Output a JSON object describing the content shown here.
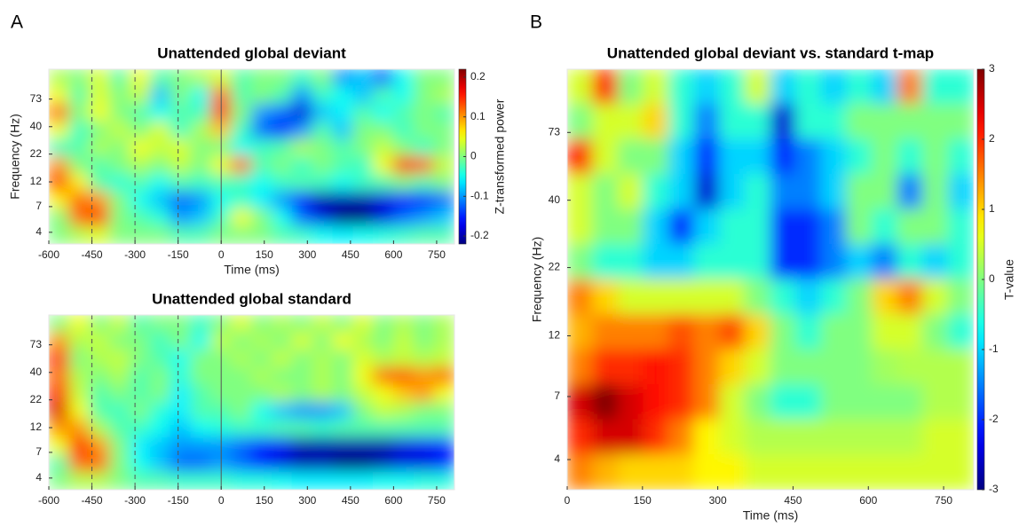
{
  "panel_labels": [
    "A",
    "B"
  ],
  "chart_data": [
    {
      "type": "heatmap",
      "title": "Unattended global deviant",
      "xlabel": "Time (ms)",
      "ylabel": "Frequency (Hz)",
      "colormap": "jet",
      "clim": [
        -0.22,
        0.22
      ],
      "log_y": true,
      "xlim": [
        -600,
        812
      ],
      "xticks": [
        -600,
        -450,
        -300,
        -150,
        0,
        150,
        300,
        450,
        600,
        750
      ],
      "ylim": [
        3.1,
        140
      ],
      "yticks": [
        4,
        7,
        12,
        22,
        40,
        73
      ],
      "vlines": [
        {
          "value": -450,
          "dashed": true
        },
        {
          "value": -300,
          "dashed": true
        },
        {
          "value": -150,
          "dashed": true
        },
        {
          "value": 0,
          "dashed": false
        }
      ],
      "colorbar": {
        "label": "Z-transformed power",
        "ticks": [
          -0.2,
          -0.1,
          0,
          0.1,
          0.2
        ]
      },
      "z": [
        [
          0.02,
          0,
          0.04,
          -0.02,
          0.05,
          -0.02,
          0,
          0.02,
          0.04,
          -0.02,
          0,
          0,
          -0.03,
          0,
          -0.1,
          -0.08,
          -0.12,
          -0.05,
          0,
          0
        ],
        [
          0.05,
          -0.02,
          0.04,
          0,
          0.03,
          -0.08,
          0,
          -0.05,
          0.12,
          -0.02,
          0,
          -0.02,
          -0.1,
          -0.03,
          -0.05,
          -0.08,
          -0.02,
          -0.05,
          0,
          0.02
        ],
        [
          0.12,
          0,
          0.05,
          0,
          -0.02,
          -0.05,
          -0.02,
          -0.03,
          0.15,
          0,
          -0.1,
          -0.12,
          -0.18,
          -0.08,
          -0.06,
          -0.02,
          -0.05,
          -0.02,
          0,
          -0.02
        ],
        [
          0.05,
          -0.03,
          0,
          0.03,
          0,
          0.04,
          -0.03,
          0.02,
          0.08,
          -0.03,
          -0.12,
          -0.15,
          -0.1,
          -0.02,
          -0.08,
          0,
          0,
          -0.03,
          0,
          0
        ],
        [
          -0.03,
          -0.02,
          0.02,
          0,
          0.05,
          0.03,
          0.04,
          0,
          0,
          -0.05,
          -0.03,
          -0.02,
          0.02,
          0,
          -0.02,
          0,
          0.03,
          0,
          -0.03,
          0
        ],
        [
          0.1,
          0,
          -0.02,
          0,
          0.02,
          0,
          0.03,
          0,
          0.05,
          0.12,
          -0.02,
          0,
          -0.03,
          0,
          -0.02,
          -0.03,
          0.05,
          0.15,
          0.12,
          0.03
        ],
        [
          0.14,
          0.06,
          -0.02,
          -0.04,
          -0.02,
          -0.05,
          -0.02,
          -0.03,
          -0.02,
          -0.03,
          -0.05,
          -0.03,
          -0.02,
          -0.03,
          -0.05,
          -0.03,
          -0.02,
          0,
          -0.02,
          0
        ],
        [
          0.06,
          0.12,
          0.1,
          0,
          -0.05,
          -0.08,
          -0.12,
          -0.1,
          -0.05,
          -0.03,
          -0.06,
          -0.1,
          -0.16,
          -0.2,
          -0.2,
          -0.2,
          -0.18,
          -0.16,
          -0.15,
          -0.12
        ],
        [
          0,
          0.12,
          0.14,
          0,
          -0.02,
          -0.04,
          -0.1,
          -0.08,
          -0.03,
          0.05,
          0,
          -0.05,
          -0.12,
          -0.18,
          -0.22,
          -0.22,
          -0.18,
          -0.12,
          -0.1,
          -0.08
        ],
        [
          0,
          0.02,
          0.04,
          0,
          0,
          0,
          -0.02,
          -0.02,
          0,
          0,
          0,
          -0.02,
          -0.03,
          -0.05,
          -0.06,
          -0.05,
          -0.04,
          -0.03,
          -0.02,
          -0.02
        ]
      ]
    },
    {
      "type": "heatmap",
      "title": "Unattended global standard",
      "colormap": "jet",
      "clim": [
        -0.22,
        0.22
      ],
      "log_y": true,
      "xlim": [
        -600,
        812
      ],
      "xticks": [
        -600,
        -450,
        -300,
        -150,
        0,
        150,
        300,
        450,
        600,
        750
      ],
      "ylim": [
        3.1,
        140
      ],
      "yticks": [
        4,
        7,
        12,
        22,
        40,
        73
      ],
      "vlines": [
        {
          "value": -450,
          "dashed": true
        },
        {
          "value": -300,
          "dashed": true
        },
        {
          "value": -150,
          "dashed": true
        },
        {
          "value": 0,
          "dashed": false
        }
      ],
      "z": [
        [
          0,
          0.05,
          0,
          0.03,
          -0.02,
          0,
          0,
          -0.03,
          0,
          0.04,
          0,
          0.02,
          0,
          0.03,
          0,
          0.04,
          0,
          0.02,
          0,
          0.02
        ],
        [
          0.1,
          0.02,
          0.03,
          0,
          0,
          -0.03,
          0,
          -0.05,
          0.03,
          0,
          0.02,
          0,
          0.04,
          0,
          0.05,
          0.02,
          0,
          0.03,
          0,
          0.02
        ],
        [
          0.15,
          0,
          0.02,
          0.03,
          0,
          -0.02,
          -0.05,
          0,
          0,
          0.02,
          0,
          0.03,
          0,
          0.02,
          0,
          0.04,
          0.02,
          0.03,
          0.02,
          0.03
        ],
        [
          0.12,
          0.02,
          0,
          0.02,
          -0.02,
          0,
          -0.04,
          0,
          0,
          0,
          0.02,
          0,
          0,
          0.02,
          0,
          0.05,
          0.12,
          0.13,
          0.1,
          0.12
        ],
        [
          0.15,
          0.03,
          -0.02,
          0,
          -0.02,
          0,
          -0.06,
          -0.02,
          0,
          0,
          0,
          0.02,
          0,
          0.02,
          0,
          0.03,
          0.05,
          0.08,
          0.1,
          0.05
        ],
        [
          0.18,
          0.05,
          -0.02,
          -0.03,
          0,
          -0.04,
          -0.06,
          -0.02,
          -0.02,
          0,
          -0.05,
          -0.08,
          -0.1,
          -0.1,
          -0.08,
          0,
          0.03,
          0.02,
          0,
          0
        ],
        [
          0.1,
          0.1,
          0.02,
          -0.02,
          -0.03,
          -0.05,
          -0.08,
          -0.05,
          -0.04,
          -0.03,
          -0.03,
          -0.02,
          -0.02,
          -0.03,
          -0.02,
          -0.02,
          -0.02,
          -0.02,
          -0.02,
          -0.02
        ],
        [
          0.05,
          0.15,
          0.1,
          0,
          -0.06,
          -0.08,
          -0.1,
          -0.1,
          -0.1,
          -0.12,
          -0.15,
          -0.17,
          -0.2,
          -0.2,
          -0.2,
          -0.2,
          -0.2,
          -0.18,
          -0.17,
          -0.15
        ],
        [
          -0.02,
          0.12,
          0.12,
          0,
          -0.05,
          -0.08,
          -0.12,
          -0.12,
          -0.1,
          -0.12,
          -0.15,
          -0.18,
          -0.2,
          -0.2,
          -0.22,
          -0.22,
          -0.2,
          -0.18,
          -0.18,
          -0.16
        ],
        [
          0,
          0.02,
          0.02,
          0,
          -0.02,
          -0.02,
          -0.03,
          -0.03,
          -0.03,
          -0.04,
          -0.04,
          -0.05,
          -0.06,
          -0.06,
          -0.06,
          -0.06,
          -0.05,
          -0.05,
          -0.04,
          -0.04
        ]
      ]
    },
    {
      "type": "heatmap",
      "title": "Unattended global deviant vs. standard t-map",
      "xlabel": "Time (ms)",
      "ylabel": "Frequency (Hz)",
      "colormap": "jet",
      "clim": [
        -3,
        3
      ],
      "log_y": true,
      "xlim": [
        0,
        810
      ],
      "xticks": [
        0,
        150,
        300,
        450,
        600,
        750
      ],
      "ylim": [
        3.06,
        128
      ],
      "yticks": [
        4,
        7,
        12,
        22,
        40,
        73
      ],
      "colorbar": {
        "label": "T-value",
        "ticks": [
          -3,
          -2,
          -1,
          0,
          1,
          2,
          3
        ]
      },
      "z": [
        [
          0.5,
          2,
          0,
          0.5,
          -0.5,
          -1,
          -0.5,
          0.5,
          -1,
          -0.5,
          -1,
          -0.5,
          -1,
          1.5,
          -0.5,
          -0.5
        ],
        [
          0,
          0.5,
          0.5,
          1,
          -0.5,
          -1.5,
          -0.5,
          -0.5,
          -2.5,
          -0.5,
          -0.5,
          0,
          0,
          0,
          0,
          0
        ],
        [
          2,
          0.5,
          0,
          0,
          -1,
          -2,
          -1,
          -1,
          -2,
          -1.5,
          -1,
          -0.5,
          0,
          -0.5,
          0,
          -0.5
        ],
        [
          0.5,
          0,
          0.5,
          -0.5,
          -1,
          -2.5,
          -1,
          -0.5,
          -1.5,
          -1.5,
          -1,
          0,
          0,
          -1.5,
          0,
          -1
        ],
        [
          0.5,
          0,
          0,
          -1,
          -2,
          -1,
          -0.5,
          -0.5,
          -2,
          -2,
          -1.5,
          0,
          -0.5,
          0,
          0,
          -0.5
        ],
        [
          0,
          -0.5,
          -0.5,
          -1,
          -1,
          -0.5,
          -0.5,
          -0.5,
          -2,
          -2,
          -1.5,
          -1,
          -1.5,
          -0.5,
          -1,
          -0.5
        ],
        [
          1.5,
          1,
          0.5,
          0.5,
          0.5,
          0.5,
          0.5,
          0,
          -0.5,
          -1,
          -0.5,
          0,
          1,
          1.5,
          0.5,
          0
        ],
        [
          1.2,
          1.5,
          1.5,
          1.5,
          1.8,
          1.5,
          1.8,
          1,
          0,
          -0.5,
          0,
          0,
          0.5,
          0.5,
          0,
          -0.5
        ],
        [
          1.5,
          2,
          2,
          2.2,
          2,
          1.5,
          1,
          0.5,
          0,
          0,
          0,
          0,
          0.2,
          0.3,
          0.3,
          0.3
        ],
        [
          2.5,
          3,
          2.5,
          2.2,
          2,
          1.5,
          0.5,
          0,
          -0.5,
          -0.5,
          0,
          0,
          0,
          0,
          0.3,
          0.3
        ],
        [
          2,
          2.5,
          2.5,
          2,
          1.5,
          0.8,
          0.5,
          0.3,
          0.3,
          0.3,
          0.3,
          0.3,
          0.3,
          0.3,
          0.5,
          0.5
        ],
        [
          1.5,
          1.2,
          1,
          1,
          1,
          0.8,
          0.8,
          0.5,
          0.5,
          0.5,
          0.5,
          0.5,
          0.5,
          0.5,
          0.5,
          0.5
        ]
      ]
    }
  ]
}
